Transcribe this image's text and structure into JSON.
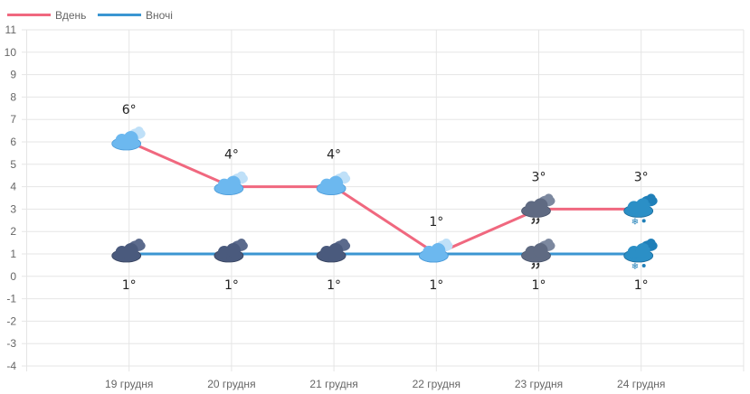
{
  "chart_data": {
    "type": "line",
    "categories": [
      "",
      "19 грудня",
      "20 грудня",
      "21 грудня",
      "22 грудня",
      "23 грудня",
      "24 грудня",
      ""
    ],
    "series": [
      {
        "name": "Вдень",
        "color": "#f0687f",
        "values": [
          null,
          6,
          4,
          4,
          1,
          3,
          3,
          null
        ],
        "labels": [
          "",
          "6°",
          "4°",
          "4°",
          "1°",
          "3°",
          "3°",
          ""
        ],
        "icons": [
          "",
          "cloud-light-icon",
          "cloud-light-icon",
          "cloud-light-icon",
          "cloud-light-icon",
          "cloud-dark-rain-icon",
          "cloud-snow-icon",
          ""
        ]
      },
      {
        "name": "Вночі",
        "color": "#3b96d2",
        "values": [
          null,
          1,
          1,
          1,
          1,
          1,
          1,
          null
        ],
        "labels": [
          "",
          "1°",
          "1°",
          "1°",
          "1°",
          "1°",
          "1°",
          ""
        ],
        "icons": [
          "",
          "cloud-dark-icon",
          "cloud-dark-icon",
          "cloud-dark-icon",
          "cloud-light-icon",
          "cloud-dark-rain-icon",
          "cloud-snow-icon",
          ""
        ]
      }
    ],
    "y_ticks": [
      "11",
      "10",
      "9",
      "8",
      "7",
      "6",
      "5",
      "4",
      "3",
      "2",
      "1",
      "0",
      "-1",
      "-2",
      "-3",
      "-4"
    ],
    "ylim": [
      -4,
      11
    ],
    "grid": true,
    "legend_position": "top-left"
  }
}
